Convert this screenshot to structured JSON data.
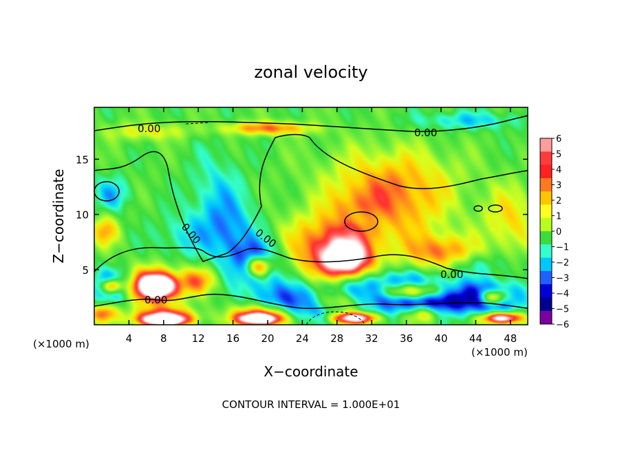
{
  "chart_data": {
    "type": "heatmap",
    "title": "zonal velocity",
    "xlabel": "X−coordinate",
    "ylabel": "Z−coordinate",
    "x_unit_left": "(×1000 m)",
    "x_unit_right": "(×1000 m)",
    "footer": "CONTOUR INTERVAL = 1.000E+01",
    "xlim": [
      0,
      50
    ],
    "ylim": [
      0,
      19.7
    ],
    "x_ticks": [
      4,
      8,
      12,
      16,
      20,
      24,
      28,
      32,
      36,
      40,
      44,
      48
    ],
    "y_ticks": [
      5,
      10,
      15
    ],
    "contour_labels": [
      "0.00",
      "0.00",
      "0.00",
      "0.00",
      "0.00",
      "0.00"
    ],
    "colorbar": {
      "ticks": [
        6,
        5,
        4,
        3,
        2,
        1,
        0,
        -1,
        -2,
        -3,
        -4,
        -5,
        -6
      ],
      "range": [
        -6,
        6
      ],
      "colors": [
        "#ff9c9c",
        "#ff3a3a",
        "#ff2020",
        "#ff7a1e",
        "#ffc400",
        "#ffff1e",
        "#b8ff1e",
        "#3cdc3c",
        "#33ffcc",
        "#00c8ff",
        "#2060ff",
        "#0000d8",
        "#000090",
        "#7a00a0"
      ]
    },
    "field_blobs": [
      {
        "x": 19,
        "z": 5.5,
        "v": -5.2,
        "rx": 2.6,
        "rz": 1.8
      },
      {
        "x": 19,
        "z": 5.3,
        "v": 8,
        "rx": 1.6,
        "rz": 1.0
      },
      {
        "x": 16,
        "z": 8.0,
        "v": -2.5,
        "rx": 3,
        "rz": 3
      },
      {
        "x": 14,
        "z": 11.5,
        "v": -1.8,
        "rx": 3,
        "rz": 4
      },
      {
        "x": 27,
        "z": 7.0,
        "v": 4.5,
        "rx": 5,
        "rz": 3
      },
      {
        "x": 29,
        "z": 6.0,
        "v": 8,
        "rx": 2.6,
        "rz": 1.5
      },
      {
        "x": 40,
        "z": 6.5,
        "v": 3.8,
        "rx": 4,
        "rz": 1.6
      },
      {
        "x": 35,
        "z": 10.5,
        "v": 2.8,
        "rx": 6,
        "rz": 3.5
      },
      {
        "x": 34,
        "z": 13.5,
        "v": 2.0,
        "rx": 8,
        "rz": 3
      },
      {
        "x": 30,
        "z": 10.0,
        "v": 1.7,
        "rx": 3,
        "rz": 2.5
      },
      {
        "x": 30.5,
        "z": 9.6,
        "v": -1.5,
        "rx": 2.2,
        "rz": 1.0
      },
      {
        "x": 20,
        "z": 17.8,
        "v": 4.0,
        "rx": 5,
        "rz": 0.6
      },
      {
        "x": 6,
        "z": 17.5,
        "v": 2.0,
        "rx": 5,
        "rz": 0.8
      },
      {
        "x": 43,
        "z": 18.5,
        "v": -2.0,
        "rx": 6,
        "rz": 0.8
      },
      {
        "x": 48,
        "z": 9.5,
        "v": 2.5,
        "rx": 3,
        "rz": 3
      },
      {
        "x": 1.2,
        "z": 8.5,
        "v": 3.2,
        "rx": 1.5,
        "rz": 1.4
      },
      {
        "x": 2,
        "z": 11.8,
        "v": -2.2,
        "rx": 2,
        "rz": 1.5
      },
      {
        "x": 7,
        "z": 3.5,
        "v": 6.5,
        "rx": 3,
        "rz": 1.6
      },
      {
        "x": 7.2,
        "z": 3.5,
        "v": 9,
        "rx": 1.8,
        "rz": 0.9
      },
      {
        "x": 2,
        "z": 3.5,
        "v": -5,
        "rx": 2,
        "rz": 1.3
      },
      {
        "x": 2,
        "z": 3.5,
        "v": 8,
        "rx": 1.2,
        "rz": 0.7
      },
      {
        "x": 12,
        "z": 4,
        "v": 3.5,
        "rx": 2,
        "rz": 1.2
      },
      {
        "x": 35,
        "z": 3.0,
        "v": -5.5,
        "rx": 7,
        "rz": 1.6
      },
      {
        "x": 36.5,
        "z": 3.0,
        "v": 8,
        "rx": 3.5,
        "rz": 0.8
      },
      {
        "x": 40,
        "z": 2.0,
        "v": -3,
        "rx": 5,
        "rz": 1.2
      },
      {
        "x": 46,
        "z": 2.5,
        "v": -4.5,
        "rx": 3.5,
        "rz": 1.4
      },
      {
        "x": 46,
        "z": 2.5,
        "v": 7,
        "rx": 1.6,
        "rz": 0.7
      },
      {
        "x": 22,
        "z": 2.5,
        "v": -3,
        "rx": 4,
        "rz": 1.5
      },
      {
        "x": 26,
        "z": 1.5,
        "v": -2.5,
        "rx": 4,
        "rz": 1.2
      },
      {
        "x": 19,
        "z": 0.9,
        "v": 5,
        "rx": 3,
        "rz": 0.9
      },
      {
        "x": 19,
        "z": 0.5,
        "v": 9,
        "rx": 2.3,
        "rz": 0.5
      },
      {
        "x": 8,
        "z": 0.8,
        "v": 5,
        "rx": 3.5,
        "rz": 0.8
      },
      {
        "x": 8,
        "z": 0.4,
        "v": 9,
        "rx": 2.6,
        "rz": 0.5
      },
      {
        "x": 30,
        "z": 0.6,
        "v": 9,
        "rx": 2.5,
        "rz": 0.5
      },
      {
        "x": 28,
        "z": 2.0,
        "v": 4,
        "rx": 3,
        "rz": 1.0
      },
      {
        "x": 47,
        "z": 0.6,
        "v": 9,
        "rx": 2.2,
        "rz": 0.5
      },
      {
        "x": 38,
        "z": 1.0,
        "v": 3.5,
        "rx": 2,
        "rz": 0.8
      },
      {
        "x": 1,
        "z": 1.0,
        "v": 4,
        "rx": 1.5,
        "rz": 0.8
      },
      {
        "x": 44,
        "z": 5.5,
        "v": -1.5,
        "rx": 4,
        "rz": 1.0
      },
      {
        "x": 10,
        "z": 8.0,
        "v": -1.5,
        "rx": 3,
        "rz": 2
      }
    ]
  }
}
